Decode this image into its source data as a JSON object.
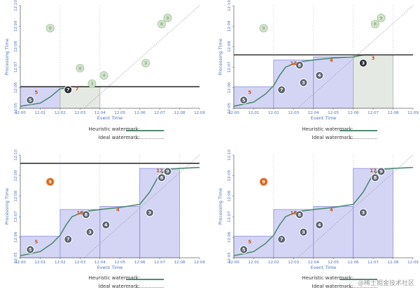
{
  "axes": {
    "y_label": "Processing Time",
    "x_label": "Event Time",
    "y_ticks": [
      "12:05",
      "12:06",
      "12:07",
      "12:08",
      "12:09",
      "12:10"
    ],
    "x_ticks": [
      "12:00",
      "12:01",
      "12:02",
      "12:03",
      "12:04",
      "12:05",
      "12:06",
      "12:07",
      "12:08",
      "12:09"
    ]
  },
  "legend": {
    "heuristic_label": "Heuristic watermark:",
    "ideal_label": "Ideal watermark:"
  },
  "colors": {
    "window_fill": "#c9cbf2",
    "window_stroke": "#8a8fd8",
    "late_fill": "#dfe4dc",
    "gray_datum": "#5c6572",
    "ghost_datum": "#d5e5d0",
    "highlight_datum": "#d7641e",
    "watermark": "#4f8a72",
    "proc_line": "#222222"
  },
  "chart_data": [
    {
      "type": "scatter",
      "title": "top-left",
      "xlim": [
        0,
        9
      ],
      "ylim": [
        0,
        5
      ],
      "processing_time_line": 1.05,
      "windows": [
        {
          "x": [
            0,
            2
          ],
          "y_top": 1.05,
          "style": "window",
          "pane": "5"
        },
        {
          "x": [
            2,
            4
          ],
          "y_top": 1.05,
          "style": "late",
          "pane": "7"
        }
      ],
      "heuristic_watermark": [
        [
          0,
          0.1
        ],
        [
          1.0,
          0.25
        ],
        [
          1.5,
          0.55
        ],
        [
          2.0,
          0.95
        ],
        [
          2.5,
          1.0
        ]
      ],
      "points": [
        {
          "x": 0.5,
          "y": 0.4,
          "label": "5",
          "style": "gray"
        },
        {
          "x": 2.4,
          "y": 0.9,
          "label": "7",
          "style": "dark"
        },
        {
          "x": 1.5,
          "y": 3.9,
          "label": "9",
          "style": "ghost"
        },
        {
          "x": 3.0,
          "y": 1.95,
          "label": "8",
          "style": "ghost"
        },
        {
          "x": 3.6,
          "y": 1.2,
          "label": "3",
          "style": "ghost"
        },
        {
          "x": 4.2,
          "y": 1.6,
          "label": "4",
          "style": "ghost"
        },
        {
          "x": 6.3,
          "y": 2.2,
          "label": "3",
          "style": "ghost"
        },
        {
          "x": 7.1,
          "y": 4.1,
          "label": "8",
          "style": "ghost"
        },
        {
          "x": 7.4,
          "y": 4.4,
          "label": "9",
          "style": "ghost"
        }
      ],
      "annotations": [
        {
          "x": 0.8,
          "y": 0.78,
          "text": "5"
        },
        {
          "x": 2.85,
          "y": 0.95,
          "text": "7"
        }
      ]
    },
    {
      "type": "scatter",
      "title": "top-right",
      "xlim": [
        0,
        9
      ],
      "ylim": [
        0,
        5
      ],
      "processing_time_line": 2.6,
      "windows": [
        {
          "x": [
            0,
            2
          ],
          "y_top": 1.05,
          "style": "window",
          "pane": "5"
        },
        {
          "x": [
            2,
            4
          ],
          "y_top": 2.35,
          "style": "window",
          "pane": "12"
        },
        {
          "x": [
            4,
            6
          ],
          "y_top": 2.5,
          "style": "window",
          "pane": "4"
        },
        {
          "x": [
            6,
            8
          ],
          "y_top": 2.6,
          "style": "late",
          "pane": "3"
        }
      ],
      "heuristic_watermark": [
        [
          0,
          0.1
        ],
        [
          1,
          0.3
        ],
        [
          1.6,
          0.7
        ],
        [
          2.0,
          1.1
        ],
        [
          2.3,
          1.6
        ],
        [
          2.6,
          2.0
        ],
        [
          3.2,
          2.25
        ],
        [
          4,
          2.35
        ],
        [
          5,
          2.45
        ],
        [
          6,
          2.5
        ],
        [
          6.5,
          2.6
        ],
        [
          7,
          2.6
        ]
      ],
      "points": [
        {
          "x": 0.5,
          "y": 0.4,
          "label": "5",
          "style": "gray"
        },
        {
          "x": 2.4,
          "y": 0.9,
          "label": "7",
          "style": "gray"
        },
        {
          "x": 3.3,
          "y": 2.1,
          "label": "8",
          "style": "gray"
        },
        {
          "x": 3.5,
          "y": 1.25,
          "label": "3",
          "style": "gray"
        },
        {
          "x": 4.3,
          "y": 1.6,
          "label": "4",
          "style": "gray"
        },
        {
          "x": 6.5,
          "y": 2.2,
          "label": "3",
          "style": "dark"
        },
        {
          "x": 1.5,
          "y": 3.9,
          "label": "9",
          "style": "ghost"
        },
        {
          "x": 7.1,
          "y": 4.1,
          "label": "8",
          "style": "ghost"
        },
        {
          "x": 7.4,
          "y": 4.4,
          "label": "9",
          "style": "ghost"
        }
      ],
      "annotations": [
        {
          "x": 0.8,
          "y": 0.78,
          "text": "5"
        },
        {
          "x": 3.0,
          "y": 2.2,
          "text": "12"
        },
        {
          "x": 4.9,
          "y": 2.35,
          "text": "4"
        },
        {
          "x": 7.0,
          "y": 2.45,
          "text": "3"
        }
      ]
    },
    {
      "type": "scatter",
      "title": "bottom-left",
      "xlim": [
        0,
        9
      ],
      "ylim": [
        0,
        5
      ],
      "processing_time_line": 4.6,
      "windows": [
        {
          "x": [
            0,
            2
          ],
          "y_top": 1.05,
          "style": "window",
          "pane": "5"
        },
        {
          "x": [
            2,
            4
          ],
          "y_top": 2.35,
          "style": "window",
          "pane": "18"
        },
        {
          "x": [
            4,
            6
          ],
          "y_top": 2.5,
          "style": "window",
          "pane": "4"
        },
        {
          "x": [
            6,
            8
          ],
          "y_top": 4.35,
          "style": "window",
          "pane": "12"
        }
      ],
      "heuristic_watermark": [
        [
          0,
          0.1
        ],
        [
          1,
          0.3
        ],
        [
          1.6,
          0.7
        ],
        [
          2.0,
          1.1
        ],
        [
          2.3,
          1.6
        ],
        [
          2.6,
          2.0
        ],
        [
          3.2,
          2.25
        ],
        [
          4,
          2.35
        ],
        [
          5,
          2.45
        ],
        [
          6,
          2.6
        ],
        [
          6.5,
          3.2
        ],
        [
          6.9,
          3.9
        ],
        [
          7.3,
          4.3
        ],
        [
          8,
          4.35
        ],
        [
          9,
          4.4
        ]
      ],
      "points": [
        {
          "x": 0.5,
          "y": 0.4,
          "label": "5",
          "style": "gray"
        },
        {
          "x": 2.4,
          "y": 0.9,
          "label": "7",
          "style": "gray"
        },
        {
          "x": 3.3,
          "y": 2.1,
          "label": "8",
          "style": "gray"
        },
        {
          "x": 3.5,
          "y": 1.25,
          "label": "3",
          "style": "gray"
        },
        {
          "x": 4.3,
          "y": 1.6,
          "label": "4",
          "style": "gray"
        },
        {
          "x": 6.5,
          "y": 2.2,
          "label": "3",
          "style": "gray"
        },
        {
          "x": 7.1,
          "y": 3.9,
          "label": "8",
          "style": "gray"
        },
        {
          "x": 7.4,
          "y": 4.2,
          "label": "9",
          "style": "gray"
        },
        {
          "x": 1.5,
          "y": 3.7,
          "label": "9",
          "style": "highlight"
        }
      ],
      "annotations": [
        {
          "x": 0.8,
          "y": 0.78,
          "text": "5"
        },
        {
          "x": 3.0,
          "y": 2.2,
          "text": "18"
        },
        {
          "x": 4.9,
          "y": 2.35,
          "text": "4"
        },
        {
          "x": 7.0,
          "y": 4.25,
          "text": "12"
        }
      ]
    },
    {
      "type": "scatter",
      "title": "bottom-right",
      "xlim": [
        0,
        9
      ],
      "ylim": [
        0,
        5
      ],
      "processing_time_line": null,
      "windows": [
        {
          "x": [
            0,
            2
          ],
          "y_top": 1.05,
          "style": "window",
          "pane": "5"
        },
        {
          "x": [
            2,
            4
          ],
          "y_top": 2.35,
          "style": "window",
          "pane": "18"
        },
        {
          "x": [
            4,
            6
          ],
          "y_top": 2.5,
          "style": "window",
          "pane": "4"
        },
        {
          "x": [
            6,
            8
          ],
          "y_top": 4.35,
          "style": "window",
          "pane": "12"
        }
      ],
      "heuristic_watermark": [
        [
          0,
          0.1
        ],
        [
          1,
          0.3
        ],
        [
          1.6,
          0.7
        ],
        [
          2.0,
          1.1
        ],
        [
          2.3,
          1.6
        ],
        [
          2.6,
          2.0
        ],
        [
          3.2,
          2.25
        ],
        [
          4,
          2.35
        ],
        [
          5,
          2.45
        ],
        [
          6,
          2.6
        ],
        [
          6.5,
          3.2
        ],
        [
          6.9,
          3.9
        ],
        [
          7.3,
          4.3
        ],
        [
          8,
          4.35
        ],
        [
          9,
          4.4
        ]
      ],
      "points": [
        {
          "x": 0.5,
          "y": 0.4,
          "label": "5",
          "style": "gray"
        },
        {
          "x": 2.4,
          "y": 0.9,
          "label": "7",
          "style": "gray"
        },
        {
          "x": 3.3,
          "y": 2.1,
          "label": "8",
          "style": "gray"
        },
        {
          "x": 3.5,
          "y": 1.25,
          "label": "3",
          "style": "gray"
        },
        {
          "x": 4.3,
          "y": 1.6,
          "label": "4",
          "style": "gray"
        },
        {
          "x": 6.5,
          "y": 2.2,
          "label": "3",
          "style": "gray"
        },
        {
          "x": 7.1,
          "y": 3.9,
          "label": "8",
          "style": "gray"
        },
        {
          "x": 7.4,
          "y": 4.2,
          "label": "9",
          "style": "gray"
        },
        {
          "x": 1.5,
          "y": 3.7,
          "label": "9",
          "style": "highlight"
        }
      ],
      "annotations": [
        {
          "x": 0.8,
          "y": 0.78,
          "text": "5"
        },
        {
          "x": 3.0,
          "y": 2.2,
          "text": "18"
        },
        {
          "x": 4.9,
          "y": 2.35,
          "text": "4"
        },
        {
          "x": 7.0,
          "y": 4.25,
          "text": "12"
        }
      ]
    }
  ],
  "footer": {
    "site_watermark": "@稀土掘金技术社区"
  }
}
